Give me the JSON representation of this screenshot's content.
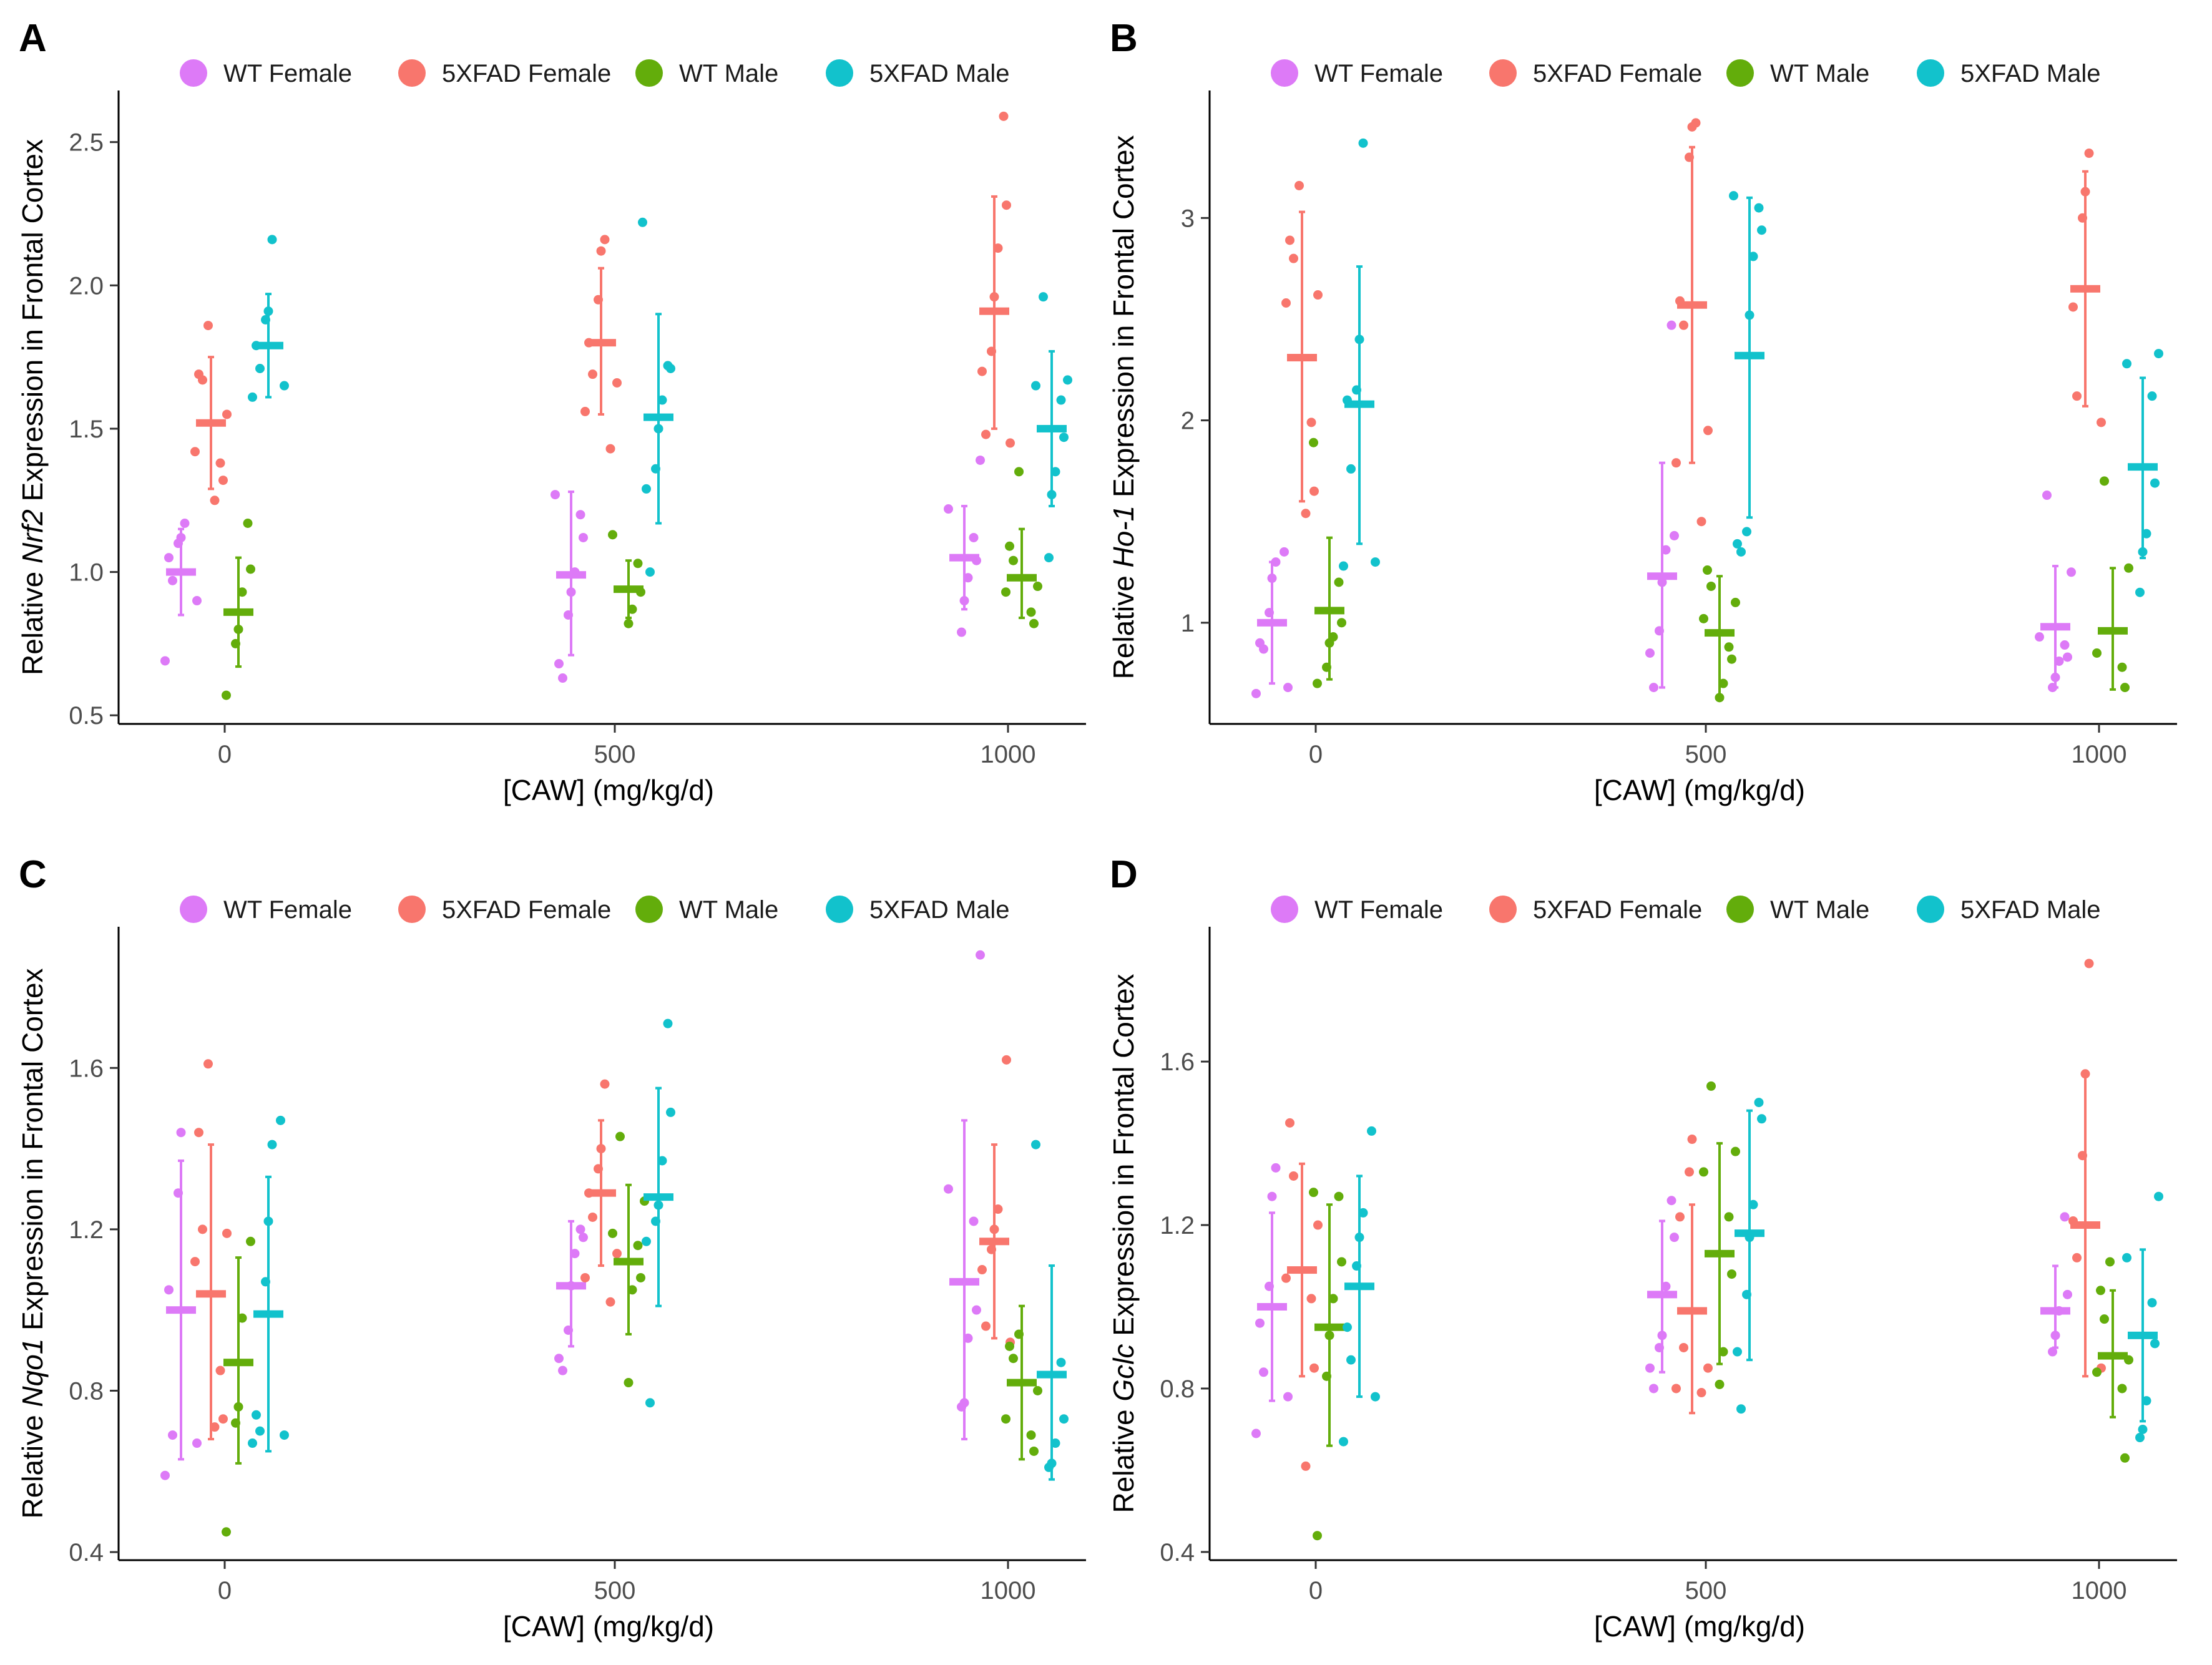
{
  "x_values": [
    0,
    500,
    1000
  ],
  "legend": [
    {
      "name": "WT Female",
      "color": "#dd7af7"
    },
    {
      "name": "5XFAD Female",
      "color": "#f8766d"
    },
    {
      "name": "WT Male",
      "color": "#63ad0b"
    },
    {
      "name": "5XFAD Male",
      "color": "#12c2cc"
    }
  ],
  "chart_data": [
    {
      "panel": "A",
      "type": "scatter",
      "xlabel": "[CAW] (mg/kg/d)",
      "ylabel_pre": "Relative ",
      "ylabel_gene": "Nrf2",
      "ylabel_post": " Expression in Frontal Cortex",
      "x_ticks": [
        "0",
        "500",
        "1000"
      ],
      "ylim": [
        0.47,
        2.68
      ],
      "y_ticks": [
        0.5,
        1.0,
        1.5,
        2.0,
        2.5
      ],
      "y_tick_labels": [
        "0.5",
        "1.0",
        "1.5",
        "2.0",
        "2.5"
      ],
      "series": [
        {
          "name": "WT Female",
          "mean": [
            1.0,
            0.99,
            1.05
          ],
          "lo": [
            0.85,
            0.71,
            0.87
          ],
          "hi": [
            1.15,
            1.28,
            1.23
          ],
          "points": [
            [
              0.69,
              0.9,
              0.97,
              1.05,
              1.1,
              1.12,
              1.17
            ],
            [
              0.63,
              0.68,
              0.85,
              0.93,
              1.0,
              1.12,
              1.2,
              1.27
            ],
            [
              0.79,
              0.9,
              0.98,
              1.04,
              1.12,
              1.22,
              1.39
            ]
          ]
        },
        {
          "name": "5XFAD Female",
          "mean": [
            1.52,
            1.8,
            1.91
          ],
          "lo": [
            1.29,
            1.55,
            1.5
          ],
          "hi": [
            1.75,
            2.06,
            2.31
          ],
          "points": [
            [
              1.25,
              1.32,
              1.38,
              1.42,
              1.55,
              1.67,
              1.69,
              1.86
            ],
            [
              1.43,
              1.56,
              1.66,
              1.69,
              1.8,
              1.95,
              2.12,
              2.16
            ],
            [
              1.45,
              1.48,
              1.7,
              1.77,
              1.96,
              2.13,
              2.28,
              2.59
            ]
          ]
        },
        {
          "name": "WT Male",
          "mean": [
            0.86,
            0.94,
            0.98
          ],
          "lo": [
            0.67,
            0.84,
            0.84
          ],
          "hi": [
            1.05,
            1.04,
            1.15
          ],
          "points": [
            [
              0.57,
              0.75,
              0.8,
              0.93,
              1.01,
              1.17
            ],
            [
              0.82,
              0.87,
              0.93,
              1.03,
              1.13
            ],
            [
              0.82,
              0.86,
              0.93,
              0.95,
              1.04,
              1.09,
              1.35
            ]
          ]
        },
        {
          "name": "5XFAD Male",
          "mean": [
            1.79,
            1.54,
            1.5
          ],
          "lo": [
            1.61,
            1.17,
            1.23
          ],
          "hi": [
            1.97,
            1.9,
            1.77
          ],
          "points": [
            [
              1.61,
              1.65,
              1.71,
              1.79,
              1.88,
              1.91,
              2.16
            ],
            [
              1.0,
              1.29,
              1.36,
              1.5,
              1.6,
              1.71,
              1.72,
              2.22
            ],
            [
              1.05,
              1.27,
              1.35,
              1.47,
              1.6,
              1.65,
              1.67,
              1.96
            ]
          ]
        }
      ]
    },
    {
      "panel": "B",
      "type": "scatter",
      "xlabel": "[CAW] (mg/kg/d)",
      "ylabel_pre": "Relative ",
      "ylabel_gene": "Ho-1",
      "ylabel_post": " Expression in Frontal Cortex",
      "x_ticks": [
        "0",
        "500",
        "1000"
      ],
      "ylim": [
        0.5,
        3.63
      ],
      "y_ticks": [
        1,
        2,
        3
      ],
      "y_tick_labels": [
        "1",
        "2",
        "3"
      ],
      "series": [
        {
          "name": "WT Female",
          "mean": [
            1.0,
            1.23,
            0.98
          ],
          "lo": [
            0.7,
            0.68,
            0.68
          ],
          "hi": [
            1.3,
            1.79,
            1.28
          ],
          "points": [
            [
              0.65,
              0.68,
              0.87,
              0.9,
              1.05,
              1.22,
              1.3,
              1.35
            ],
            [
              0.68,
              0.85,
              0.96,
              1.2,
              1.36,
              1.43,
              2.47
            ],
            [
              0.68,
              0.73,
              0.81,
              0.83,
              0.89,
              0.93,
              1.25,
              1.63
            ]
          ]
        },
        {
          "name": "5XFAD Female",
          "mean": [
            2.31,
            2.57,
            2.65
          ],
          "lo": [
            1.6,
            1.79,
            2.07
          ],
          "hi": [
            3.03,
            3.35,
            3.23
          ],
          "points": [
            [
              1.54,
              1.65,
              1.99,
              2.58,
              2.62,
              2.8,
              2.89,
              3.16
            ],
            [
              1.5,
              1.79,
              1.95,
              2.47,
              2.59,
              3.3,
              3.45,
              3.47
            ],
            [
              1.99,
              2.12,
              2.56,
              3.0,
              3.13,
              3.32
            ]
          ]
        },
        {
          "name": "WT Male",
          "mean": [
            1.06,
            0.95,
            0.96
          ],
          "lo": [
            0.72,
            0.64,
            0.67
          ],
          "hi": [
            1.42,
            1.23,
            1.27
          ],
          "points": [
            [
              0.7,
              0.78,
              0.9,
              0.93,
              1.0,
              1.2,
              1.89
            ],
            [
              0.63,
              0.7,
              0.82,
              0.88,
              1.02,
              1.1,
              1.18,
              1.26
            ],
            [
              0.68,
              0.78,
              0.85,
              1.27,
              1.7
            ]
          ]
        },
        {
          "name": "5XFAD Male",
          "mean": [
            2.08,
            2.32,
            1.77
          ],
          "lo": [
            1.39,
            1.52,
            1.32
          ],
          "hi": [
            2.76,
            3.1,
            2.21
          ],
          "points": [
            [
              1.28,
              1.3,
              1.76,
              2.1,
              2.15,
              2.4,
              3.37
            ],
            [
              1.35,
              1.39,
              1.45,
              2.52,
              2.81,
              2.94,
              3.05,
              3.11
            ],
            [
              1.15,
              1.35,
              1.44,
              1.69,
              2.12,
              2.28,
              2.33
            ]
          ]
        }
      ]
    },
    {
      "panel": "C",
      "type": "scatter",
      "xlabel": "[CAW] (mg/kg/d)",
      "ylabel_pre": "Relative ",
      "ylabel_gene": "Nqo1",
      "ylabel_post": " Expression in Frontal Cortex",
      "x_ticks": [
        "0",
        "500",
        "1000"
      ],
      "ylim": [
        0.38,
        1.95
      ],
      "y_ticks": [
        0.4,
        0.8,
        1.2,
        1.6
      ],
      "y_tick_labels": [
        "0.4",
        "0.8",
        "1.2",
        "1.6"
      ],
      "series": [
        {
          "name": "WT Female",
          "mean": [
            1.0,
            1.06,
            1.07
          ],
          "lo": [
            0.63,
            0.91,
            0.68
          ],
          "hi": [
            1.37,
            1.22,
            1.47
          ],
          "points": [
            [
              0.59,
              0.67,
              0.69,
              1.05,
              1.29,
              1.44
            ],
            [
              0.85,
              0.88,
              0.95,
              1.06,
              1.14,
              1.18,
              1.2
            ],
            [
              0.76,
              0.77,
              0.93,
              1.0,
              1.22,
              1.3,
              1.88
            ]
          ]
        },
        {
          "name": "5XFAD Female",
          "mean": [
            1.04,
            1.29,
            1.17
          ],
          "lo": [
            0.68,
            1.11,
            0.93
          ],
          "hi": [
            1.41,
            1.47,
            1.41
          ],
          "points": [
            [
              0.71,
              0.73,
              0.85,
              1.12,
              1.19,
              1.2,
              1.44,
              1.61
            ],
            [
              1.02,
              1.08,
              1.14,
              1.23,
              1.29,
              1.35,
              1.4,
              1.56
            ],
            [
              0.92,
              0.96,
              1.1,
              1.15,
              1.2,
              1.25,
              1.62
            ]
          ]
        },
        {
          "name": "WT Male",
          "mean": [
            0.87,
            1.12,
            0.82
          ],
          "lo": [
            0.62,
            0.94,
            0.63
          ],
          "hi": [
            1.13,
            1.31,
            1.01
          ],
          "points": [
            [
              0.45,
              0.72,
              0.76,
              0.98,
              1.17
            ],
            [
              0.82,
              1.05,
              1.08,
              1.16,
              1.19,
              1.27,
              1.43
            ],
            [
              0.65,
              0.69,
              0.73,
              0.8,
              0.88,
              0.91,
              0.94
            ]
          ]
        },
        {
          "name": "5XFAD Male",
          "mean": [
            0.99,
            1.28,
            0.84
          ],
          "lo": [
            0.65,
            1.01,
            0.58
          ],
          "hi": [
            1.33,
            1.55,
            1.11
          ],
          "points": [
            [
              0.67,
              0.69,
              0.7,
              0.74,
              1.07,
              1.22,
              1.41,
              1.47
            ],
            [
              0.77,
              1.17,
              1.22,
              1.26,
              1.37,
              1.49,
              1.71
            ],
            [
              0.61,
              0.62,
              0.67,
              0.73,
              0.87,
              1.41
            ]
          ]
        }
      ]
    },
    {
      "panel": "D",
      "type": "scatter",
      "xlabel": "[CAW] (mg/kg/d)",
      "ylabel_pre": "Relative ",
      "ylabel_gene": "Gclc",
      "ylabel_post": " Expression in Frontal Cortex",
      "x_ticks": [
        "0",
        "500",
        "1000"
      ],
      "ylim": [
        0.38,
        1.93
      ],
      "y_ticks": [
        0.4,
        0.8,
        1.2,
        1.6
      ],
      "y_tick_labels": [
        "0.4",
        "0.8",
        "1.2",
        "1.6"
      ],
      "series": [
        {
          "name": "WT Female",
          "mean": [
            1.0,
            1.03,
            0.99
          ],
          "lo": [
            0.77,
            0.84,
            0.9
          ],
          "hi": [
            1.23,
            1.21,
            1.1
          ],
          "points": [
            [
              0.69,
              0.78,
              0.84,
              0.96,
              1.05,
              1.27,
              1.34
            ],
            [
              0.8,
              0.85,
              0.9,
              0.93,
              1.05,
              1.17,
              1.26
            ],
            [
              0.89,
              0.93,
              0.99,
              1.03,
              1.22
            ]
          ]
        },
        {
          "name": "5XFAD Female",
          "mean": [
            1.09,
            0.99,
            1.2
          ],
          "lo": [
            0.83,
            0.74,
            0.83
          ],
          "hi": [
            1.35,
            1.25,
            1.57
          ],
          "points": [
            [
              0.61,
              0.85,
              1.02,
              1.07,
              1.2,
              1.32,
              1.45
            ],
            [
              0.79,
              0.8,
              0.85,
              0.9,
              1.22,
              1.33,
              1.41
            ],
            [
              0.85,
              1.12,
              1.21,
              1.37,
              1.57,
              1.84
            ]
          ]
        },
        {
          "name": "WT Male",
          "mean": [
            0.95,
            1.13,
            0.88
          ],
          "lo": [
            0.66,
            0.86,
            0.73
          ],
          "hi": [
            1.25,
            1.4,
            1.04
          ],
          "points": [
            [
              0.44,
              0.83,
              0.93,
              1.02,
              1.11,
              1.27,
              1.28
            ],
            [
              0.81,
              0.89,
              1.08,
              1.22,
              1.33,
              1.38,
              1.54
            ],
            [
              0.63,
              0.8,
              0.84,
              0.87,
              0.97,
              1.04,
              1.11
            ]
          ]
        },
        {
          "name": "5XFAD Male",
          "mean": [
            1.05,
            1.18,
            0.93
          ],
          "lo": [
            0.78,
            0.87,
            0.72
          ],
          "hi": [
            1.32,
            1.48,
            1.14
          ],
          "points": [
            [
              0.67,
              0.78,
              0.87,
              0.95,
              1.1,
              1.17,
              1.23,
              1.43
            ],
            [
              0.75,
              0.89,
              1.03,
              1.17,
              1.25,
              1.46,
              1.5
            ],
            [
              0.68,
              0.7,
              0.77,
              0.91,
              1.01,
              1.12,
              1.27
            ]
          ]
        }
      ]
    }
  ]
}
